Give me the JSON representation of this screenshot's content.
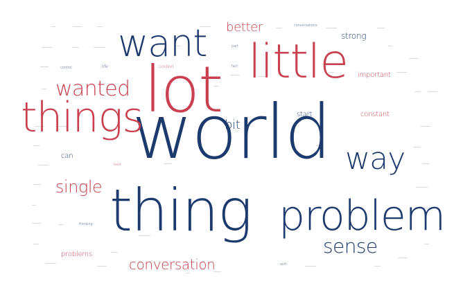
{
  "colors": {
    "navy": "#1d3a6e",
    "red": "#c94150",
    "faint": "#b9b9b9"
  },
  "words": [
    {
      "text": "world",
      "weight": 100,
      "color": "navy"
    },
    {
      "text": "lot",
      "weight": 92,
      "color": "red"
    },
    {
      "text": "thing",
      "weight": 86,
      "color": "navy"
    },
    {
      "text": "problem",
      "weight": 70,
      "color": "navy"
    },
    {
      "text": "little",
      "weight": 64,
      "color": "red"
    },
    {
      "text": "things",
      "weight": 60,
      "color": "red"
    },
    {
      "text": "want",
      "weight": 54,
      "color": "navy"
    },
    {
      "text": "way",
      "weight": 44,
      "color": "navy"
    },
    {
      "text": "wanted",
      "weight": 40,
      "color": "red"
    },
    {
      "text": "sense",
      "weight": 32,
      "color": "navy"
    },
    {
      "text": "single",
      "weight": 30,
      "color": "red"
    },
    {
      "text": "conversation",
      "weight": 26,
      "color": "red"
    },
    {
      "text": "better",
      "weight": 24,
      "color": "red"
    },
    {
      "text": "bit",
      "weight": 22,
      "color": "navy"
    },
    {
      "text": "strong",
      "weight": 14,
      "color": "navy"
    },
    {
      "text": "important",
      "weight": 12,
      "color": "red"
    },
    {
      "text": "constant",
      "weight": 12,
      "color": "red"
    },
    {
      "text": "start",
      "weight": 11,
      "color": "navy"
    },
    {
      "text": "problems",
      "weight": 11,
      "color": "red"
    },
    {
      "text": "can",
      "weight": 11,
      "color": "navy"
    },
    {
      "text": "context",
      "weight": 7,
      "color": "red"
    },
    {
      "text": "conversations",
      "weight": 6,
      "color": "navy"
    },
    {
      "text": "life",
      "weight": 6,
      "color": "navy"
    },
    {
      "text": "control",
      "weight": 6,
      "color": "navy"
    },
    {
      "text": "thinking",
      "weight": 5,
      "color": "navy"
    },
    {
      "text": "sort",
      "weight": 5,
      "color": "navy"
    },
    {
      "text": "best",
      "weight": 5,
      "color": "red"
    },
    {
      "text": "part",
      "weight": 4,
      "color": "navy"
    },
    {
      "text": "fact",
      "weight": 4,
      "color": "navy"
    }
  ]
}
